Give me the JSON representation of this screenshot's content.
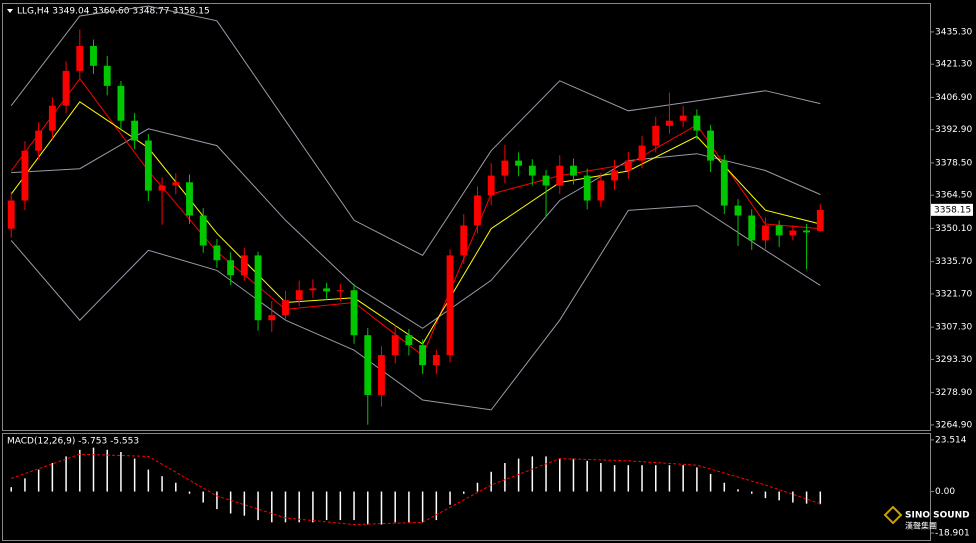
{
  "chart_data": [
    {
      "type": "candlestick",
      "title": "LLG,H4 3349.04 3360.60 3348.77 3358.15",
      "up_color": "#ff0000",
      "down_color": "#00c800",
      "xlim": [
        -0.6,
        67
      ],
      "ylim": [
        3262.7,
        3447.4
      ],
      "yticks": [
        {
          "value": 3264.9,
          "label": "3264.90"
        },
        {
          "value": 3278.9,
          "label": "3278.90"
        },
        {
          "value": 3293.3,
          "label": "3293.30"
        },
        {
          "value": 3307.3,
          "label": "3307.30"
        },
        {
          "value": 3321.7,
          "label": "3321.70"
        },
        {
          "value": 3335.7,
          "label": "3335.70"
        },
        {
          "value": 3350.1,
          "label": "3350.10"
        },
        {
          "value": 3364.5,
          "label": "3364.50"
        },
        {
          "value": 3378.5,
          "label": "3378.50"
        },
        {
          "value": 3392.9,
          "label": "3392.90"
        },
        {
          "value": 3406.9,
          "label": "3406.90"
        },
        {
          "value": 3421.3,
          "label": "3421.30"
        },
        {
          "value": 3435.3,
          "label": "3435.30"
        }
      ],
      "last_price": 3358.15,
      "open": [
        3350.0,
        3362.2,
        3383.8,
        3392.5,
        3403.3,
        3418.4,
        3429.2,
        3420.6,
        3411.9,
        3396.8,
        3388.2,
        3366.5,
        3368.7,
        3370.1,
        3355.7,
        3342.7,
        3336.3,
        3329.8,
        3338.4,
        3310.3,
        3312.5,
        3319.0,
        3323.3,
        3324.1,
        3322.8,
        3323.3,
        3303.8,
        3277.9,
        3295.2,
        3303.8,
        3299.5,
        3290.8,
        3295.2,
        3338.4,
        3351.4,
        3364.4,
        3373.0,
        3379.5,
        3377.3,
        3373.0,
        3368.7,
        3377.3,
        3373.0,
        3362.2,
        3370.9,
        3375.2,
        3379.5,
        3386.0,
        3394.6,
        3396.8,
        3399.0,
        3392.5,
        3379.5,
        3360.0,
        3355.7,
        3344.9,
        3351.4,
        3347.1,
        3349.2,
        3349.04
      ],
      "high": [
        3366.0,
        3388.0,
        3396.1,
        3407.0,
        3422.5,
        3436.4,
        3432.0,
        3424.8,
        3414.0,
        3400.2,
        3391.0,
        3372.3,
        3374.0,
        3373.5,
        3358.9,
        3345.5,
        3339.8,
        3341.6,
        3340.0,
        3318.6,
        3323.0,
        3327.5,
        3328.0,
        3326.5,
        3326.0,
        3326.1,
        3306.9,
        3299.0,
        3308.1,
        3306.5,
        3302.0,
        3297.5,
        3341.0,
        3356.3,
        3368.2,
        3378.4,
        3386.3,
        3383.0,
        3380.1,
        3375.5,
        3381.8,
        3380.4,
        3376.0,
        3374.2,
        3379.8,
        3383.3,
        3390.1,
        3398.5,
        3409.0,
        3403.2,
        3401.7,
        3395.0,
        3382.0,
        3362.8,
        3358.4,
        3354.8,
        3353.6,
        3351.5,
        3352.0,
        3360.6
      ],
      "low": [
        3346.1,
        3358.0,
        3380.2,
        3389.0,
        3400.0,
        3415.2,
        3417.1,
        3407.8,
        3393.0,
        3384.5,
        3362.0,
        3351.7,
        3364.9,
        3352.1,
        3339.5,
        3333.0,
        3325.6,
        3327.4,
        3305.8,
        3305.2,
        3309.9,
        3316.4,
        3320.0,
        3319.1,
        3318.6,
        3300.1,
        3265.0,
        3272.8,
        3291.6,
        3295.0,
        3287.0,
        3286.9,
        3292.0,
        3334.7,
        3347.9,
        3360.1,
        3369.6,
        3372.7,
        3368.8,
        3355.0,
        3365.0,
        3369.1,
        3358.4,
        3359.5,
        3366.7,
        3371.6,
        3376.2,
        3383.0,
        3391.2,
        3394.0,
        3388.6,
        3374.6,
        3356.3,
        3342.5,
        3340.8,
        3341.2,
        3342.0,
        3344.9,
        3332.4,
        3348.77
      ],
      "close": [
        3362.2,
        3383.8,
        3392.5,
        3403.3,
        3418.4,
        3429.2,
        3420.6,
        3411.9,
        3396.8,
        3388.2,
        3366.5,
        3368.7,
        3370.1,
        3355.7,
        3342.7,
        3336.3,
        3329.8,
        3338.4,
        3310.3,
        3312.5,
        3319.0,
        3323.3,
        3324.1,
        3322.8,
        3323.3,
        3303.8,
        3277.9,
        3295.2,
        3303.8,
        3299.5,
        3290.8,
        3295.2,
        3338.4,
        3351.4,
        3364.4,
        3373.0,
        3379.5,
        3377.3,
        3373.0,
        3368.7,
        3377.3,
        3373.0,
        3362.2,
        3370.9,
        3375.2,
        3379.5,
        3386.0,
        3394.6,
        3396.8,
        3399.0,
        3392.5,
        3379.5,
        3360.0,
        3355.7,
        3344.9,
        3351.4,
        3347.1,
        3349.2,
        3348.4,
        3358.15
      ],
      "series": [
        {
          "color": "#9a9aa8",
          "x": [
            0,
            5,
            10,
            15,
            20,
            25,
            30,
            35,
            40,
            45,
            50,
            55,
            59
          ],
          "values": [
            3403.3,
            3442.2,
            3446.5,
            3440.1,
            3396.8,
            3353.6,
            3338.4,
            3383.8,
            3414.1,
            3401.1,
            3405.4,
            3409.8,
            3404.2
          ]
        },
        {
          "color": "#9a9aa8",
          "x": [
            0,
            5,
            10,
            15,
            20,
            25,
            30,
            35,
            40,
            45,
            50,
            55,
            59
          ],
          "values": [
            3374.3,
            3376.0,
            3393.3,
            3386.0,
            3353.6,
            3325.4,
            3306.8,
            3327.6,
            3362.2,
            3379.5,
            3382.5,
            3375.2,
            3364.8
          ]
        },
        {
          "color": "#9a9aa8",
          "x": [
            0,
            5,
            10,
            15,
            20,
            25,
            30,
            35,
            40,
            45,
            50,
            55,
            59
          ],
          "values": [
            3344.9,
            3310.3,
            3340.6,
            3331.9,
            3310.3,
            3297.3,
            3275.7,
            3271.4,
            3310.3,
            3357.9,
            3360.0,
            3340.6,
            3325.4
          ]
        },
        {
          "color": "#ff0000",
          "x": [
            0,
            5,
            10,
            15,
            20,
            25,
            30,
            35,
            40,
            45,
            50,
            55,
            59
          ],
          "values": [
            3375,
            3415,
            3375,
            3340,
            3315,
            3318,
            3295,
            3365,
            3373,
            3378,
            3395,
            3352,
            3350
          ]
        },
        {
          "color": "#ffff00",
          "x": [
            0,
            5,
            10,
            15,
            20,
            25,
            30,
            35,
            40,
            45,
            50,
            55,
            59
          ],
          "values": [
            3365,
            3405,
            3385,
            3348,
            3318,
            3320,
            3300,
            3350,
            3370,
            3375,
            3390,
            3358,
            3352
          ]
        }
      ]
    },
    {
      "type": "macd",
      "title": "MACD(12,26,9) -5.753 -5.553",
      "xlim": [
        -0.6,
        67
      ],
      "ylim": [
        -22.06,
        26.2
      ],
      "yticks": [
        23.514,
        {
          "value": 0,
          "label": "0.00"
        },
        -18.901
      ],
      "histogram_color": "#ffffff",
      "histogram": [
        2,
        6,
        10,
        13,
        16,
        19,
        20,
        19,
        18,
        15,
        10,
        7,
        4,
        -1,
        -5,
        -8,
        -10,
        -11,
        -13,
        -14,
        -14,
        -14,
        -14,
        -13,
        -13,
        -13,
        -15,
        -15,
        -14,
        -14,
        -14,
        -13,
        -6,
        -1,
        4,
        9,
        13,
        15,
        16,
        16,
        15,
        15,
        14,
        13,
        12,
        12,
        12,
        12,
        12,
        12,
        11,
        8,
        4,
        1,
        -1,
        -3,
        -4,
        -5,
        -5.5,
        -5.753
      ],
      "signal": {
        "color": "#ff0000",
        "dashed": true,
        "x": [
          0,
          5,
          10,
          15,
          20,
          25,
          30,
          35,
          40,
          45,
          50,
          55,
          59
        ],
        "values": [
          6,
          17,
          16,
          -2,
          -12,
          -15,
          -14,
          3,
          15,
          14,
          12,
          3,
          -5.553
        ]
      }
    }
  ],
  "logo": {
    "text": "SINO SOUND",
    "subtext": "漢聲集團"
  }
}
